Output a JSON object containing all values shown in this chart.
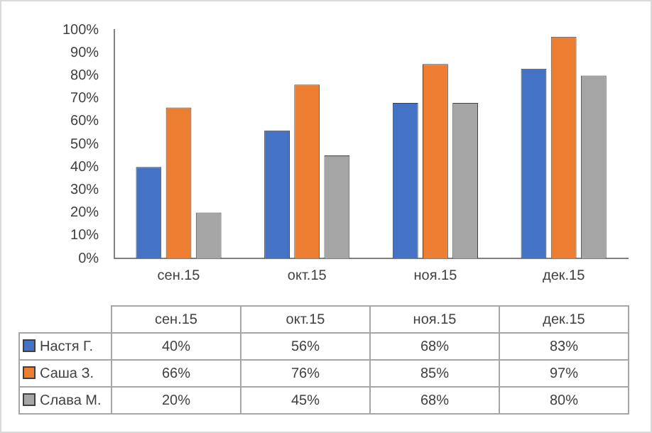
{
  "chart_data": {
    "type": "bar",
    "categories": [
      "сен.15",
      "окт.15",
      "ноя.15",
      "дек.15"
    ],
    "series": [
      {
        "name": "Настя Г.",
        "color": "#4472c4",
        "values": [
          40,
          56,
          68,
          83
        ],
        "value_labels": [
          "40%",
          "56%",
          "68%",
          "83%"
        ]
      },
      {
        "name": "Саша З.",
        "color": "#ed7d31",
        "values": [
          66,
          76,
          85,
          97
        ],
        "value_labels": [
          "66%",
          "76%",
          "85%",
          "97%"
        ]
      },
      {
        "name": "Слава М.",
        "color": "#a5a5a5",
        "values": [
          20,
          45,
          68,
          80
        ],
        "value_labels": [
          "20%",
          "45%",
          "68%",
          "80%"
        ]
      }
    ],
    "ylim": [
      0,
      100
    ],
    "yticks": [
      {
        "value": 0,
        "label": "0%"
      },
      {
        "value": 10,
        "label": "10%"
      },
      {
        "value": 20,
        "label": "20%"
      },
      {
        "value": 30,
        "label": "30%"
      },
      {
        "value": 40,
        "label": "40%"
      },
      {
        "value": 50,
        "label": "50%"
      },
      {
        "value": 60,
        "label": "60%"
      },
      {
        "value": 70,
        "label": "70%"
      },
      {
        "value": 80,
        "label": "80%"
      },
      {
        "value": 90,
        "label": "90%"
      },
      {
        "value": 100,
        "label": "100%"
      }
    ],
    "grid": false,
    "legend": "bottom"
  }
}
